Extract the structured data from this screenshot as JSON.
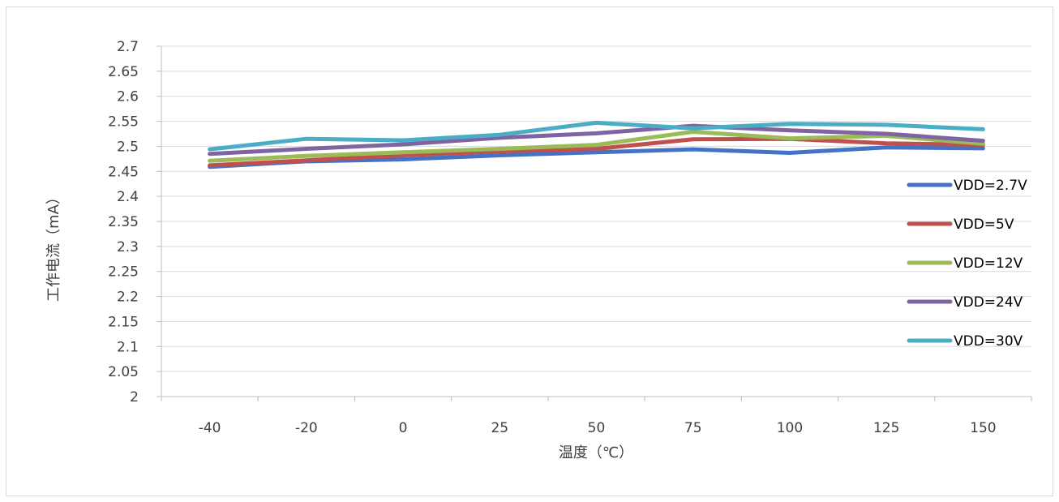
{
  "chart_data": {
    "type": "line",
    "categories": [
      "-40",
      "-20",
      "0",
      "25",
      "50",
      "75",
      "100",
      "125",
      "150"
    ],
    "y_ticks": [
      "2",
      "2.05",
      "2.1",
      "2.15",
      "2.2",
      "2.25",
      "2.3",
      "2.35",
      "2.4",
      "2.45",
      "2.5",
      "2.55",
      "2.6",
      "2.65",
      "2.7"
    ],
    "xlabel": "温度（℃）",
    "ylabel": "工作电流（mA）",
    "ylim": [
      2,
      2.7
    ],
    "grid": "horizontal",
    "legend_position": "right",
    "series": [
      {
        "name": "VDD=2.7V",
        "color": "#4472C4",
        "values": [
          2.459,
          2.47,
          2.474,
          2.482,
          2.488,
          2.494,
          2.487,
          2.498,
          2.496
        ]
      },
      {
        "name": "VDD=5V",
        "color": "#C0504D",
        "values": [
          2.462,
          2.472,
          2.482,
          2.49,
          2.495,
          2.514,
          2.515,
          2.506,
          2.503
        ]
      },
      {
        "name": "VDD=12V",
        "color": "#9BBB59",
        "values": [
          2.471,
          2.481,
          2.488,
          2.495,
          2.503,
          2.529,
          2.516,
          2.521,
          2.505
        ]
      },
      {
        "name": "VDD=24V",
        "color": "#8064A2",
        "values": [
          2.485,
          2.495,
          2.504,
          2.517,
          2.526,
          2.541,
          2.532,
          2.525,
          2.511
        ]
      },
      {
        "name": "VDD=30V",
        "color": "#4BACC6",
        "values": [
          2.494,
          2.515,
          2.512,
          2.523,
          2.547,
          2.536,
          2.545,
          2.543,
          2.534
        ]
      }
    ]
  }
}
